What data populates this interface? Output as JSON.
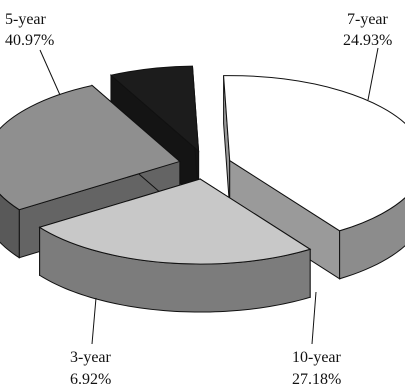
{
  "chart_data": {
    "type": "pie",
    "style": "3d-exploded",
    "categories": [
      "5-year",
      "7-year",
      "10-year",
      "3-year"
    ],
    "values": [
      40.97,
      24.93,
      27.18,
      6.92
    ],
    "value_labels": [
      "40.97%",
      "24.93%",
      "27.18%",
      "6.92%"
    ],
    "colors": [
      "#ffffff",
      "#c8c8c8",
      "#8f8f8f",
      "#1c1c1c"
    ],
    "legend": "none",
    "title": ""
  }
}
